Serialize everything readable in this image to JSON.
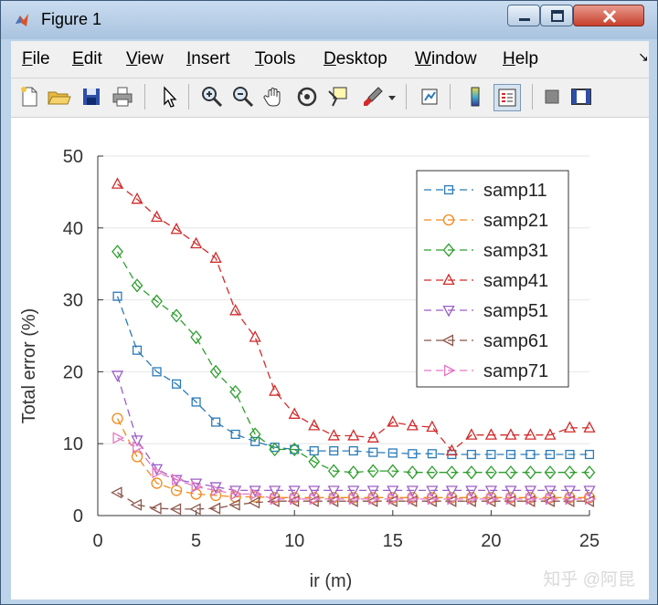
{
  "window": {
    "title": "Figure 1"
  },
  "menu": [
    {
      "label": "File",
      "ul": "F",
      "rest": "ile"
    },
    {
      "label": "Edit",
      "ul": "E",
      "rest": "dit"
    },
    {
      "label": "View",
      "ul": "V",
      "rest": "iew"
    },
    {
      "label": "Insert",
      "ul": "I",
      "rest": "nsert"
    },
    {
      "label": "Tools",
      "ul": "T",
      "rest": "ools"
    },
    {
      "label": "Desktop",
      "ul": "D",
      "rest": "esktop"
    },
    {
      "label": "Window",
      "ul": "W",
      "rest": "indow"
    },
    {
      "label": "Help",
      "ul": "H",
      "rest": "elp"
    }
  ],
  "toolbar_icons": [
    "new-file-icon",
    "open-folder-icon",
    "save-icon",
    "print-icon",
    "pointer-arrow-icon",
    "zoom-in-icon",
    "zoom-out-icon",
    "pan-hand-icon",
    "rotate-3d-icon",
    "data-cursor-icon",
    "brush-icon",
    "brush-dropdown-icon",
    "link-plot-icon",
    "colorbar-icon",
    "legend-icon",
    "hide-plot-tools-icon",
    "show-plot-tools-icon"
  ],
  "watermark": "知乎 @阿昆",
  "chart_data": {
    "type": "line",
    "xlabel": "ir (m)",
    "ylabel": "Total error (%)",
    "xlim": [
      0,
      25
    ],
    "ylim": [
      0,
      50
    ],
    "xticks": [
      0,
      5,
      10,
      15,
      20,
      25
    ],
    "yticks": [
      0,
      10,
      20,
      30,
      40,
      50
    ],
    "grid": "horizontal",
    "legend_position": "top-right",
    "x": [
      1,
      2,
      3,
      4,
      5,
      6,
      7,
      8,
      9,
      10,
      11,
      12,
      13,
      14,
      15,
      16,
      17,
      18,
      19,
      20,
      21,
      22,
      23,
      24,
      25
    ],
    "series": [
      {
        "name": "samp11",
        "marker": "square",
        "color": "#2a7ab8",
        "values": [
          30.5,
          23,
          20,
          18.3,
          15.8,
          13,
          11.3,
          10.3,
          9.5,
          9.2,
          9.0,
          9.0,
          9.0,
          8.8,
          8.7,
          8.6,
          8.6,
          8.5,
          8.5,
          8.5,
          8.5,
          8.5,
          8.5,
          8.5,
          8.5
        ]
      },
      {
        "name": "samp21",
        "marker": "circle",
        "color": "#f08a1e",
        "values": [
          13.5,
          8.2,
          4.5,
          3.5,
          3.0,
          2.8,
          2.6,
          2.6,
          2.5,
          2.5,
          2.5,
          2.5,
          2.5,
          2.5,
          2.5,
          2.5,
          2.5,
          2.5,
          2.5,
          2.5,
          2.5,
          2.5,
          2.5,
          2.5,
          2.5
        ]
      },
      {
        "name": "samp31",
        "marker": "diamond",
        "color": "#2e9e2e",
        "values": [
          36.7,
          32,
          29.8,
          27.8,
          24.8,
          20,
          17.2,
          11.3,
          9.2,
          9.2,
          7.5,
          6.2,
          6.0,
          6.2,
          6.2,
          6.0,
          6.0,
          6.0,
          6.0,
          6.0,
          6.0,
          6.0,
          6.0,
          6.0,
          6.0
        ]
      },
      {
        "name": "samp41",
        "marker": "triangle-up",
        "color": "#d22b2b",
        "values": [
          46.1,
          44,
          41.5,
          39.8,
          37.8,
          35.8,
          28.5,
          24.8,
          17.3,
          14.1,
          12.5,
          11.1,
          11.1,
          10.8,
          13.0,
          12.5,
          12.3,
          9.0,
          11.2,
          11.2,
          11.2,
          11.2,
          11.2,
          12.2,
          12.2
        ]
      },
      {
        "name": "samp51",
        "marker": "triangle-down",
        "color": "#9a5fc7",
        "values": [
          19.5,
          10.5,
          6.5,
          5.0,
          4.5,
          4.0,
          3.5,
          3.5,
          3.5,
          3.5,
          3.5,
          3.5,
          3.5,
          3.5,
          3.5,
          3.5,
          3.5,
          3.5,
          3.5,
          3.5,
          3.5,
          3.5,
          3.5,
          3.5,
          3.5
        ]
      },
      {
        "name": "samp61",
        "marker": "triangle-left",
        "color": "#8c564b",
        "values": [
          3.2,
          1.5,
          1.0,
          0.9,
          0.9,
          1.0,
          1.5,
          1.8,
          2.0,
          2.0,
          2.0,
          2.0,
          2.0,
          2.0,
          2.0,
          2.0,
          2.0,
          2.0,
          2.0,
          2.0,
          2.0,
          2.0,
          2.0,
          2.0,
          2.0
        ]
      },
      {
        "name": "samp71",
        "marker": "triangle-right",
        "color": "#e377c2",
        "values": [
          10.8,
          9.5,
          6.0,
          5.0,
          4.0,
          3.5,
          3.0,
          3.0,
          2.3,
          2.3,
          2.3,
          2.3,
          2.3,
          2.3,
          2.3,
          2.3,
          2.3,
          2.3,
          2.3,
          2.3,
          2.3,
          2.3,
          2.3,
          2.3,
          2.3
        ]
      }
    ]
  }
}
